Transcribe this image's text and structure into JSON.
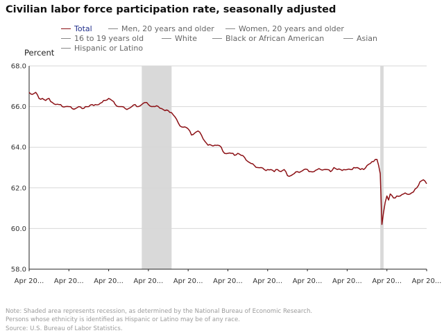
{
  "chart_data": {
    "type": "line",
    "title": "Civilian labor force participation rate, seasonally adjusted",
    "ylabel": "Percent",
    "xlabel": "",
    "ylim": [
      58.0,
      68.0
    ],
    "y_ticks": [
      "68.0",
      "66.0",
      "64.0",
      "62.0",
      "60.0",
      "58.0"
    ],
    "y_tick_values": [
      68,
      66,
      64,
      62,
      60,
      58
    ],
    "x_ticks": [
      "Apr 20...",
      "Apr 20...",
      "Apr 20...",
      "Apr 20...",
      "Apr 20...",
      "Apr 20...",
      "Apr 20...",
      "Apr 20...",
      "Apr 20...",
      "Apr 20...",
      "Apr 20..."
    ],
    "x_tick_positions": [
      0,
      24,
      48,
      72,
      96,
      120,
      144,
      168,
      192,
      216,
      240
    ],
    "x_range": [
      0,
      240
    ],
    "grid": "horizontal",
    "legend_placement": "top",
    "legend": [
      {
        "label": "Total",
        "active": true
      },
      {
        "label": "Men, 20 years and older",
        "active": false
      },
      {
        "label": "Women, 20 years and older",
        "active": false
      },
      {
        "label": "16 to 19 years old",
        "active": false
      },
      {
        "label": "White",
        "active": false
      },
      {
        "label": "Black or African American",
        "active": false
      },
      {
        "label": "Asian",
        "active": false
      },
      {
        "label": "Hispanic or Latino",
        "active": false
      }
    ],
    "recessions": [
      [
        68,
        86
      ],
      [
        212,
        214
      ]
    ],
    "series": [
      {
        "name": "Total",
        "color": "#8b0f14",
        "keypoints": [
          [
            0,
            66.7
          ],
          [
            2,
            66.6
          ],
          [
            4,
            66.7
          ],
          [
            6,
            66.4
          ],
          [
            8,
            66.4
          ],
          [
            10,
            66.3
          ],
          [
            12,
            66.4
          ],
          [
            14,
            66.2
          ],
          [
            16,
            66.1
          ],
          [
            18,
            66.1
          ],
          [
            20,
            66.0
          ],
          [
            22,
            66.0
          ],
          [
            24,
            66.0
          ],
          [
            26,
            65.9
          ],
          [
            28,
            65.9
          ],
          [
            30,
            66.0
          ],
          [
            32,
            65.9
          ],
          [
            34,
            66.0
          ],
          [
            36,
            66.0
          ],
          [
            38,
            66.1
          ],
          [
            40,
            66.1
          ],
          [
            42,
            66.1
          ],
          [
            44,
            66.2
          ],
          [
            46,
            66.3
          ],
          [
            48,
            66.4
          ],
          [
            50,
            66.3
          ],
          [
            52,
            66.1
          ],
          [
            54,
            66.0
          ],
          [
            56,
            66.0
          ],
          [
            58,
            65.9
          ],
          [
            60,
            65.9
          ],
          [
            62,
            66.0
          ],
          [
            64,
            66.1
          ],
          [
            66,
            66.0
          ],
          [
            68,
            66.1
          ],
          [
            70,
            66.2
          ],
          [
            72,
            66.1
          ],
          [
            74,
            66.0
          ],
          [
            76,
            66.0
          ],
          [
            78,
            66.0
          ],
          [
            80,
            65.9
          ],
          [
            82,
            65.8
          ],
          [
            84,
            65.8
          ],
          [
            86,
            65.7
          ],
          [
            88,
            65.5
          ],
          [
            90,
            65.2
          ],
          [
            92,
            65.0
          ],
          [
            94,
            65.0
          ],
          [
            96,
            64.9
          ],
          [
            98,
            64.6
          ],
          [
            100,
            64.7
          ],
          [
            102,
            64.8
          ],
          [
            104,
            64.6
          ],
          [
            106,
            64.3
          ],
          [
            108,
            64.1
          ],
          [
            110,
            64.1
          ],
          [
            112,
            64.1
          ],
          [
            114,
            64.1
          ],
          [
            116,
            64.0
          ],
          [
            118,
            63.7
          ],
          [
            120,
            63.7
          ],
          [
            122,
            63.7
          ],
          [
            124,
            63.6
          ],
          [
            126,
            63.7
          ],
          [
            128,
            63.6
          ],
          [
            130,
            63.5
          ],
          [
            132,
            63.3
          ],
          [
            134,
            63.2
          ],
          [
            136,
            63.1
          ],
          [
            138,
            63.0
          ],
          [
            140,
            63.0
          ],
          [
            142,
            62.9
          ],
          [
            144,
            62.9
          ],
          [
            146,
            62.9
          ],
          [
            148,
            62.8
          ],
          [
            150,
            62.9
          ],
          [
            152,
            62.8
          ],
          [
            154,
            62.9
          ],
          [
            156,
            62.6
          ],
          [
            158,
            62.6
          ],
          [
            160,
            62.7
          ],
          [
            162,
            62.8
          ],
          [
            164,
            62.8
          ],
          [
            166,
            62.9
          ],
          [
            168,
            62.9
          ],
          [
            170,
            62.8
          ],
          [
            172,
            62.8
          ],
          [
            174,
            62.9
          ],
          [
            176,
            62.9
          ],
          [
            178,
            62.9
          ],
          [
            180,
            62.9
          ],
          [
            182,
            62.8
          ],
          [
            184,
            63.0
          ],
          [
            186,
            62.9
          ],
          [
            188,
            62.9
          ],
          [
            190,
            62.9
          ],
          [
            192,
            62.9
          ],
          [
            194,
            62.9
          ],
          [
            196,
            63.0
          ],
          [
            198,
            63.0
          ],
          [
            200,
            62.9
          ],
          [
            202,
            62.9
          ],
          [
            204,
            63.1
          ],
          [
            206,
            63.2
          ],
          [
            208,
            63.3
          ],
          [
            209,
            63.4
          ],
          [
            210,
            63.4
          ],
          [
            211,
            63.1
          ],
          [
            212,
            62.7
          ],
          [
            213,
            60.2
          ],
          [
            214,
            60.8
          ],
          [
            215,
            61.3
          ],
          [
            216,
            61.6
          ],
          [
            217,
            61.4
          ],
          [
            218,
            61.7
          ],
          [
            220,
            61.5
          ],
          [
            222,
            61.6
          ],
          [
            224,
            61.6
          ],
          [
            226,
            61.7
          ],
          [
            228,
            61.7
          ],
          [
            230,
            61.7
          ],
          [
            232,
            61.8
          ],
          [
            234,
            62.0
          ],
          [
            236,
            62.3
          ],
          [
            238,
            62.4
          ],
          [
            240,
            62.2
          ]
        ]
      }
    ]
  },
  "notes": [
    "Note: Shaded area represents recession, as determined by the National Bureau of Economic Research.",
    "Persons whose ethnicity is identified as Hispanic or Latino may be of any race.",
    "Source: U.S. Bureau of Labor Statistics."
  ]
}
